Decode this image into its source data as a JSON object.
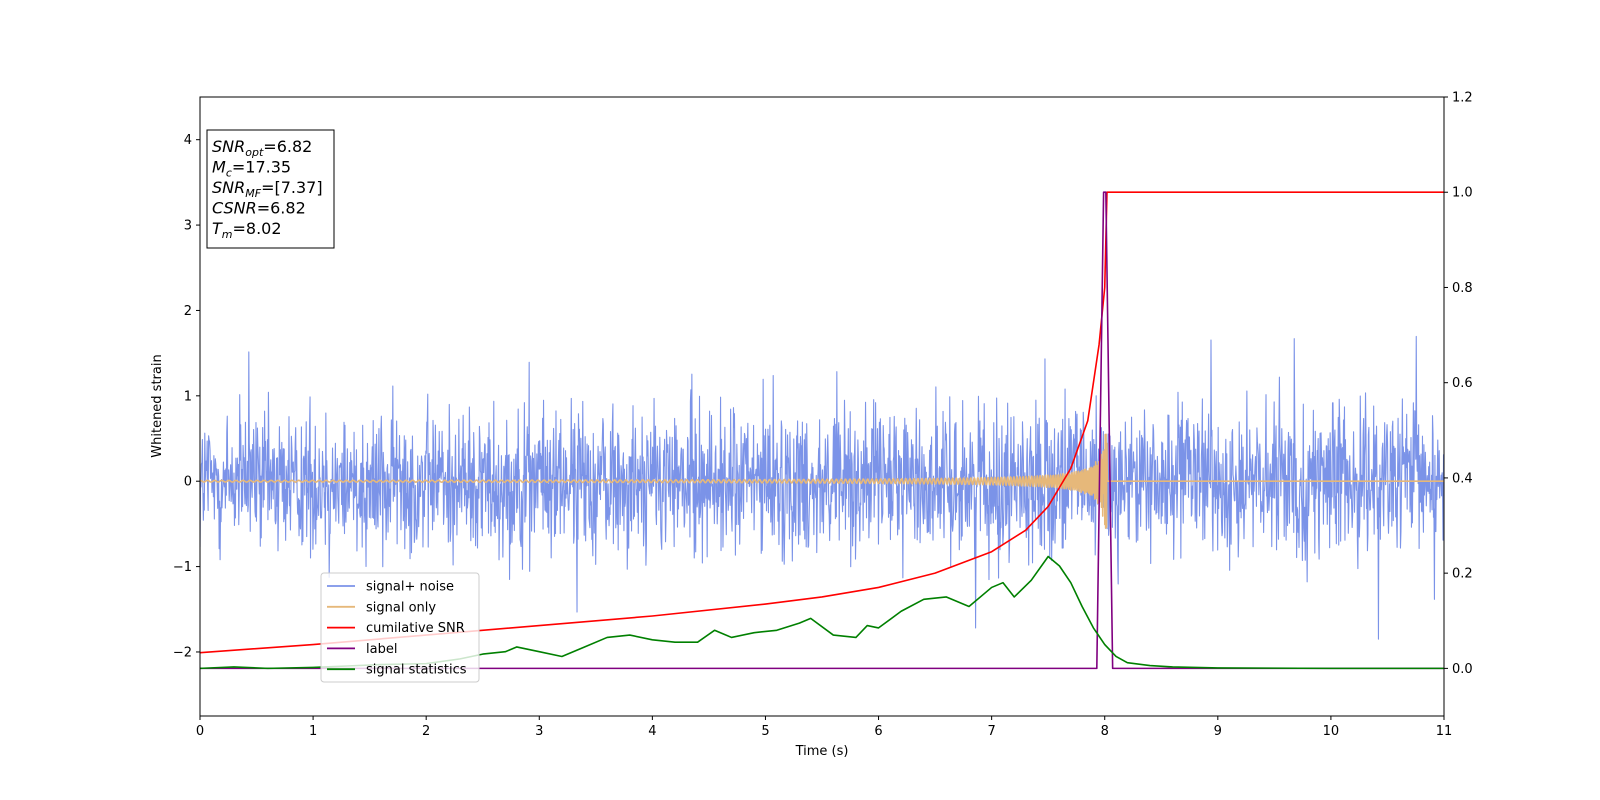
{
  "chart_data": {
    "type": "line",
    "xlabel": "Time (s)",
    "ylabel": "Whitened strain",
    "xlim": [
      0,
      11
    ],
    "ylim_left": [
      -2.75,
      4.5
    ],
    "ylim_right": [
      -0.1,
      1.2
    ],
    "x_ticks": [
      "0",
      "1",
      "2",
      "3",
      "4",
      "5",
      "6",
      "7",
      "8",
      "9",
      "10",
      "11"
    ],
    "y_ticks_left": [
      "−2",
      "−1",
      "0",
      "1",
      "2",
      "3",
      "4"
    ],
    "y_ticks_right": [
      "0.0",
      "0.2",
      "0.4",
      "0.6",
      "0.8",
      "1.0",
      "1.2"
    ],
    "grid": false,
    "legend_position": "lower-left",
    "info_box": {
      "lines": [
        {
          "main": "SNR",
          "sub": "opt",
          "value": "=6.82"
        },
        {
          "main": "M",
          "sub": "c",
          "value": "=17.35"
        },
        {
          "main": "SNR",
          "sub": "MF",
          "value": "=[7.37]"
        },
        {
          "main": "CSNR",
          "sub": "",
          "value": "=6.82"
        },
        {
          "main": "T",
          "sub": "m",
          "value": "=8.02"
        }
      ]
    },
    "series": [
      {
        "name": "signal+ noise",
        "color": "#7b93e8",
        "axis": "left",
        "kind": "noise",
        "x_range": [
          0,
          11
        ],
        "typical_amplitude": 1.0,
        "peak_amplitude": 1.85
      },
      {
        "name": "signal only",
        "color": "#e6b87a",
        "axis": "left",
        "kind": "chirp",
        "x_range": [
          0,
          11
        ],
        "merger_time": 8.02,
        "peak_amplitude": 0.55
      },
      {
        "name": "cumilative SNR",
        "color": "#ff0000",
        "axis": "right",
        "x": [
          0,
          1,
          2,
          3,
          4,
          5,
          5.5,
          6,
          6.5,
          7,
          7.3,
          7.5,
          7.7,
          7.85,
          7.95,
          8.0,
          8.02,
          8.05,
          9,
          10,
          11
        ],
        "values": [
          0.033,
          0.05,
          0.07,
          0.09,
          0.11,
          0.135,
          0.15,
          0.17,
          0.2,
          0.245,
          0.29,
          0.34,
          0.42,
          0.52,
          0.68,
          0.8,
          1.0,
          1.0,
          1.0,
          1.0,
          1.0
        ]
      },
      {
        "name": "label",
        "color": "#800080",
        "axis": "right",
        "x": [
          0,
          7.93,
          7.99,
          8.01,
          8.07,
          11
        ],
        "values": [
          0,
          0,
          1.0,
          1.0,
          0,
          0
        ]
      },
      {
        "name": "signal statistics",
        "color": "#008000",
        "axis": "right",
        "x": [
          0,
          0.3,
          0.6,
          1.0,
          1.3,
          1.6,
          2.0,
          2.3,
          2.5,
          2.7,
          2.8,
          3.0,
          3.2,
          3.4,
          3.6,
          3.8,
          4.0,
          4.2,
          4.4,
          4.55,
          4.7,
          4.9,
          5.1,
          5.3,
          5.4,
          5.6,
          5.8,
          5.9,
          6.0,
          6.2,
          6.4,
          6.6,
          6.8,
          7.0,
          7.1,
          7.2,
          7.35,
          7.5,
          7.6,
          7.7,
          7.8,
          7.9,
          8.0,
          8.1,
          8.2,
          8.4,
          8.6,
          9.0,
          10.0,
          11.0
        ],
        "values": [
          0.0,
          0.003,
          0.0,
          0.002,
          0.005,
          0.008,
          0.01,
          0.02,
          0.03,
          0.035,
          0.045,
          0.035,
          0.025,
          0.045,
          0.065,
          0.07,
          0.06,
          0.055,
          0.055,
          0.08,
          0.065,
          0.075,
          0.08,
          0.095,
          0.105,
          0.07,
          0.065,
          0.09,
          0.085,
          0.12,
          0.145,
          0.15,
          0.13,
          0.17,
          0.18,
          0.15,
          0.185,
          0.235,
          0.215,
          0.18,
          0.13,
          0.085,
          0.05,
          0.025,
          0.012,
          0.006,
          0.003,
          0.001,
          0.0,
          0.0
        ]
      }
    ]
  }
}
